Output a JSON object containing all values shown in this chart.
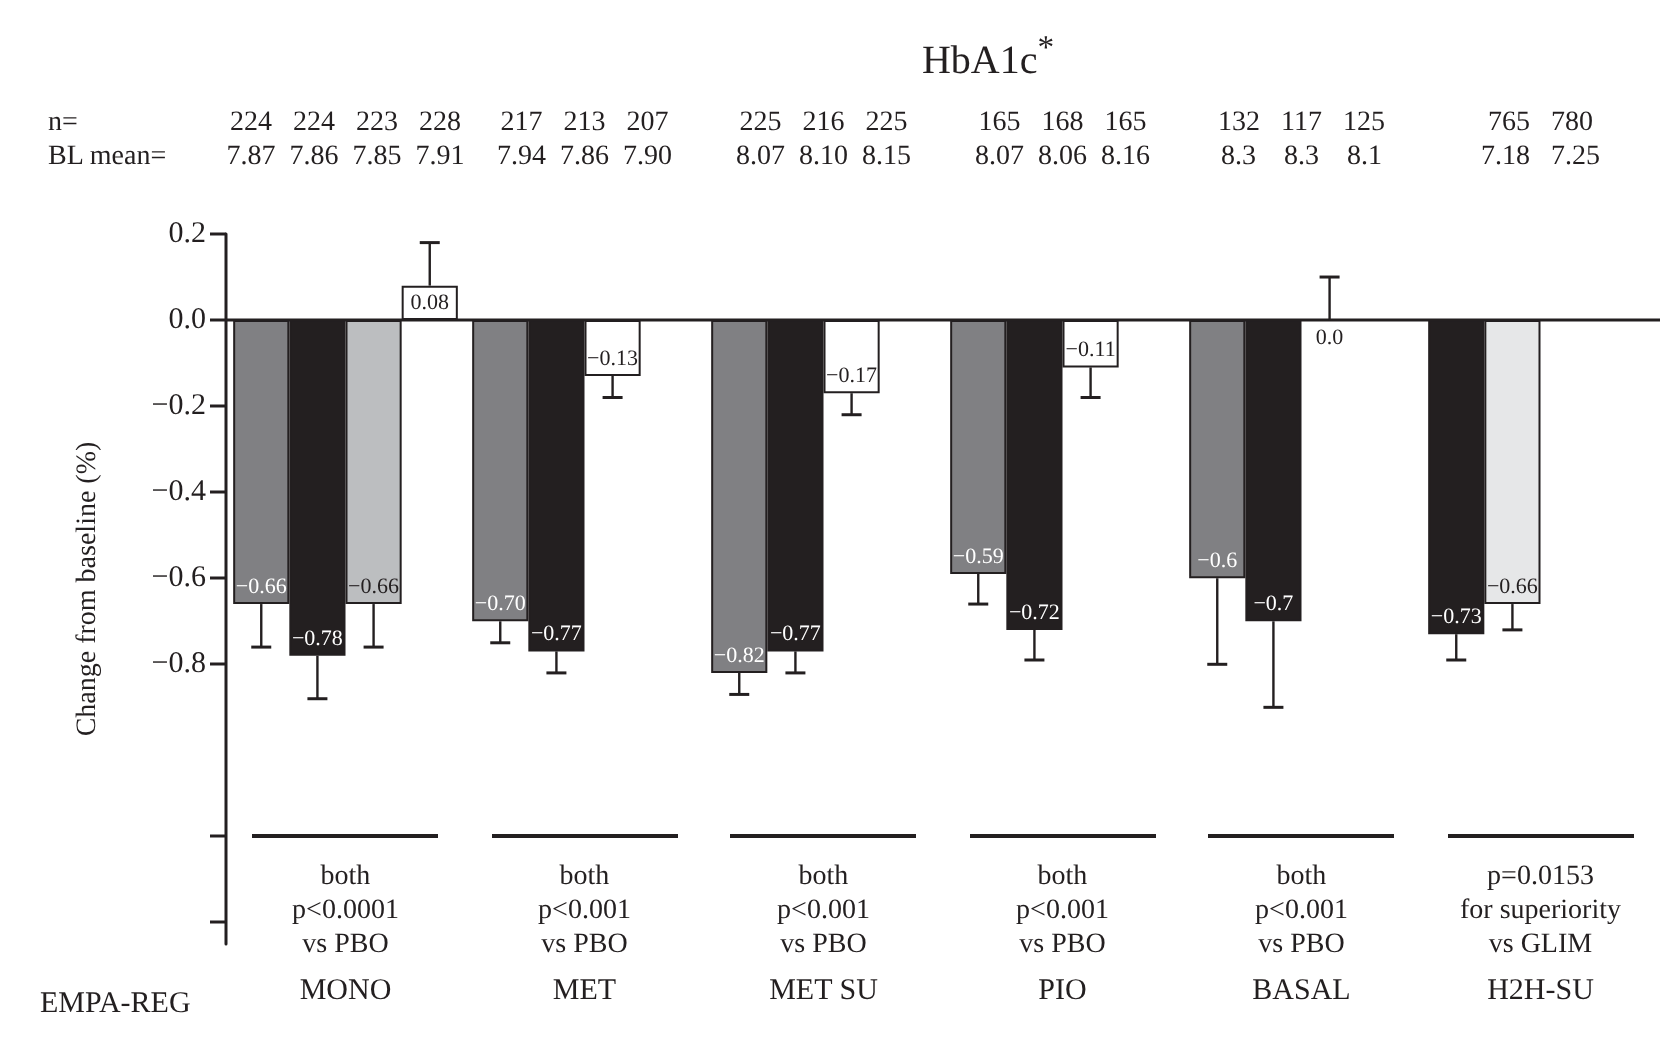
{
  "chart_data": {
    "type": "bar",
    "title": "HbA1c$^{*}$",
    "ylabel": "Change from baseline (%)",
    "categories": [
      "MONO",
      "MET",
      "MET SU",
      "PIO",
      "BASAL",
      "H2H-SU"
    ],
    "series": [
      {
        "colors": [
          "#808083",
          "#808083",
          "#808083",
          "#808083",
          "#808083",
          "#231f20"
        ],
        "values": [
          -0.66,
          -0.7,
          -0.82,
          -0.59,
          -0.6,
          -0.73
        ],
        "value_labels": [
          "−0.66",
          "−0.70",
          "−0.82",
          "−0.59",
          "−0.6",
          "−0.73"
        ],
        "errors": [
          [
            -0.76,
            -0.66
          ],
          [
            -0.75,
            -0.7
          ],
          [
            -0.87,
            -0.82
          ],
          [
            -0.66,
            -0.59
          ],
          [
            -0.8,
            -0.6
          ],
          [
            -0.79,
            -0.73
          ]
        ]
      },
      {
        "colors": [
          "#231f20",
          "#231f20",
          "#231f20",
          "#231f20",
          "#231f20",
          "#e6e7e8"
        ],
        "values": [
          -0.78,
          -0.77,
          -0.77,
          -0.72,
          -0.7,
          -0.66
        ],
        "value_labels": [
          "−0.78",
          "−0.77",
          "−0.77",
          "−0.72",
          "−0.7",
          "−0.66"
        ],
        "errors": [
          [
            -0.88,
            -0.78
          ],
          [
            -0.82,
            -0.77
          ],
          [
            -0.82,
            -0.77
          ],
          [
            -0.79,
            -0.72
          ],
          [
            -0.9,
            -0.7
          ],
          [
            -0.72,
            -0.66
          ]
        ]
      },
      {
        "colors": [
          "#bcbec0",
          "#ffffff",
          "#ffffff",
          "#ffffff",
          "#ffffff",
          null
        ],
        "values": [
          -0.66,
          -0.13,
          -0.17,
          -0.11,
          0.0,
          null
        ],
        "value_labels": [
          "−0.66",
          "−0.13",
          "−0.17",
          "−0.11",
          "0.0",
          null
        ],
        "errors": [
          [
            -0.76,
            -0.66
          ],
          [
            -0.18,
            -0.13
          ],
          [
            -0.22,
            -0.17
          ],
          [
            -0.18,
            -0.11
          ],
          [
            0.0,
            0.1
          ],
          null
        ]
      },
      {
        "colors": [
          "#ffffff",
          null,
          null,
          null,
          null,
          null
        ],
        "values": [
          0.08,
          null,
          null,
          null,
          null,
          null
        ],
        "value_labels": [
          "0.08",
          null,
          null,
          null,
          null,
          null
        ],
        "errors": [
          [
            0.08,
            0.18
          ],
          null,
          null,
          null,
          null,
          null
        ]
      }
    ],
    "ylim": [
      -1.45,
      0.2
    ],
    "yticks": [
      {
        "value": 0.2,
        "label": "0.2"
      },
      {
        "value": 0.0,
        "label": "0.0"
      },
      {
        "value": -0.2,
        "label": "−0.2"
      },
      {
        "value": -0.4,
        "label": "−0.4"
      },
      {
        "value": -0.6,
        "label": "−0.6"
      },
      {
        "value": -0.8,
        "label": "−0.8"
      },
      {
        "value": -1.2,
        "label": null
      },
      {
        "value": -1.4,
        "label": null
      }
    ],
    "ref_lines": [
      {
        "axis": "y",
        "value": 0
      }
    ],
    "grid": false,
    "annotations": [
      "n=\nBL mean=",
      "EMPA-REG",
      "224   224   223   228\n7.87  7.86  7.85  7.91",
      "217   213   207\n7.94  7.86  7.90",
      "225   216   225\n8.07  8.10  8.15",
      "165   168   165\n8.07  8.06  8.16",
      "132   117   125\n8.3    8.3    8.1",
      "765   780\n7.18   7.25",
      "both\np<0.0001\nvs PBO",
      "both\np<0.001\nvs PBO",
      "both\np<0.001\nvs PBO",
      "both\np<0.001\nvs PBO",
      "both\np<0.001\nvs PBO",
      "p=0.0153\nfor superiority\nvs GLIM"
    ]
  }
}
